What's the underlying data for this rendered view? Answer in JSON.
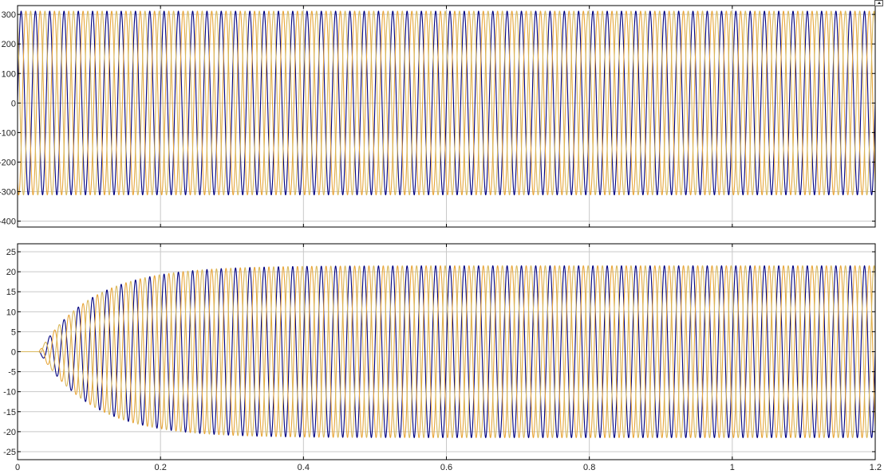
{
  "chart_data": [
    {
      "type": "line",
      "title": "",
      "xlabel": "",
      "ylabel": "",
      "xlim": [
        0,
        1.2
      ],
      "ylim": [
        -420,
        330
      ],
      "y_ticks": [
        300,
        200,
        100,
        0,
        -100,
        -200,
        -300,
        -400
      ],
      "y_tick_labels": [
        "300",
        "200",
        "100",
        "0",
        "-100",
        "-200",
        "-300",
        "-400"
      ],
      "x_ticks": [
        0,
        0.2,
        0.4,
        0.6,
        0.8,
        1.0,
        1.2
      ],
      "grid": true,
      "frequency_hz": 50,
      "series": [
        {
          "color": "#00007f",
          "amplitude": 311,
          "phase_deg": 0
        },
        {
          "color": "#e8a63a",
          "amplitude": 311,
          "phase_deg": -120
        },
        {
          "color": "#d9b85c",
          "amplitude": 311,
          "phase_deg": 120
        }
      ]
    },
    {
      "type": "line",
      "title": "",
      "xlabel": "",
      "ylabel": "",
      "xlim": [
        0,
        1.2
      ],
      "ylim": [
        -27,
        27
      ],
      "y_ticks": [
        25,
        20,
        15,
        10,
        5,
        0,
        -5,
        -10,
        -15,
        -20,
        -25
      ],
      "y_tick_labels": [
        "25",
        "20",
        "15",
        "10",
        "5",
        "0",
        "-5",
        "-10",
        "-15",
        "-20",
        "-25"
      ],
      "x_ticks": [
        0,
        0.2,
        0.4,
        0.6,
        0.8,
        1.0,
        1.2
      ],
      "x_tick_labels": [
        "0",
        "0.2",
        "0.4",
        "0.6",
        "0.8",
        "1",
        "1.2"
      ],
      "grid": true,
      "frequency_hz": 50,
      "steady_amplitude": 21.5,
      "start_time": 0.03,
      "rise_time_constant": 0.075,
      "series": [
        {
          "color": "#00007f",
          "phase_deg": 0
        },
        {
          "color": "#e8a63a",
          "phase_deg": -120
        },
        {
          "color": "#d9b85c",
          "phase_deg": 120
        }
      ]
    }
  ],
  "colors": {
    "background": "#ffffff",
    "grid": "#c8c8c8",
    "axes": "#000000"
  },
  "icons": {
    "autoscale": "autoscale-icon"
  }
}
